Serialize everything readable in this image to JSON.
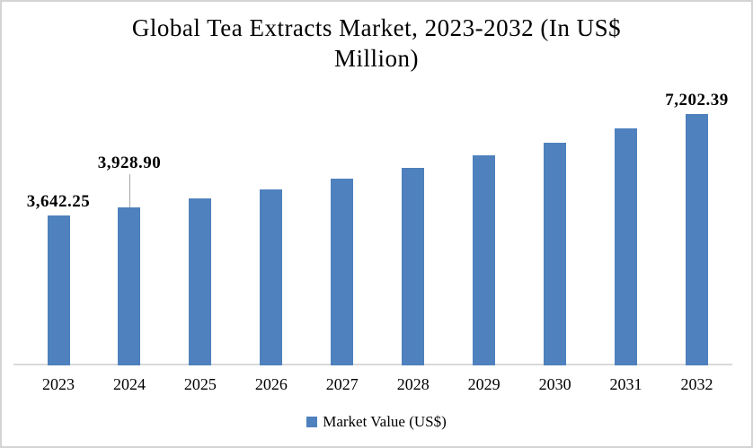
{
  "frame": {
    "background": "#ffffff",
    "border_color": "#d4d4d4"
  },
  "chart_data": {
    "type": "bar",
    "title": "Global Tea Extracts Market, 2023-2032 (In US$ Million)",
    "title_lines": [
      "Global Tea Extracts Market, 2023-2032 (In US$",
      "Million)"
    ],
    "categories": [
      "2023",
      "2024",
      "2025",
      "2026",
      "2027",
      "2028",
      "2029",
      "2030",
      "2031",
      "2032"
    ],
    "series": [
      {
        "name": "Market Value (US$)",
        "color": "#4E81BD",
        "values": [
          3642.25,
          3928.9,
          4238.1,
          4571.64,
          4931.44,
          5319.55,
          5738.2,
          6189.8,
          6676.94,
          7202.39
        ]
      }
    ],
    "shown_data_labels": [
      {
        "category": "2023",
        "text": "3,642.25",
        "leader_line": false
      },
      {
        "category": "2024",
        "text": "3,928.90",
        "leader_line": true
      },
      {
        "category": "2032",
        "text": "7,202.39",
        "leader_line": false
      }
    ],
    "xlabel": "",
    "ylabel": "",
    "ylim": [
      -1600,
      8200
    ],
    "grid": false,
    "axis_line_color": "#d9d9d9",
    "leader_line_color": "#a6a6a6",
    "legend": {
      "position": "bottom",
      "entries": [
        {
          "label": "Market Value (US$)",
          "color": "#4E81BD"
        }
      ]
    }
  }
}
